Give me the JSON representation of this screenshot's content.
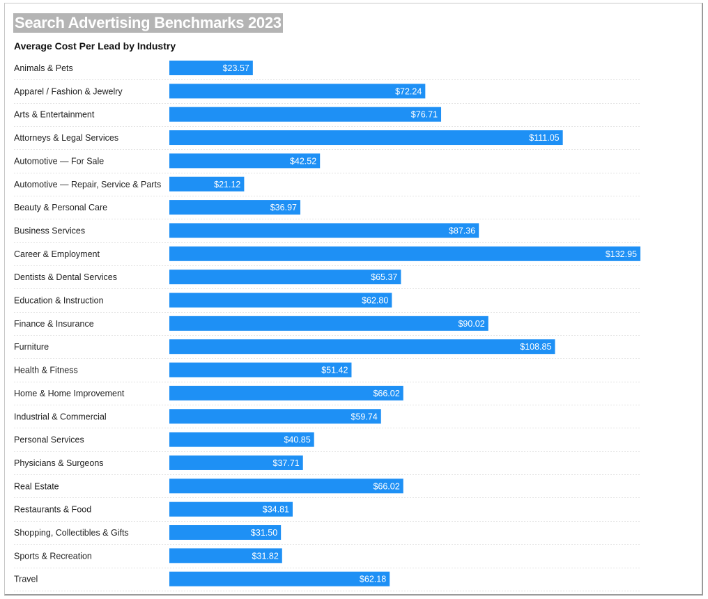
{
  "title": "Search Advertising Benchmarks 2023",
  "chart_data": {
    "type": "bar",
    "orientation": "horizontal",
    "title": "Average Cost Per Lead by Industry",
    "xlabel": "",
    "ylabel": "",
    "value_prefix": "$",
    "xlim": [
      0,
      132.95
    ],
    "bar_color": "#1E90F5",
    "categories": [
      "Animals & Pets",
      "Apparel / Fashion & Jewelry",
      "Arts & Entertainment",
      "Attorneys & Legal Services",
      "Automotive — For Sale",
      "Automotive — Repair, Service & Parts",
      "Beauty & Personal Care",
      "Business Services",
      "Career & Employment",
      "Dentists & Dental Services",
      "Education & Instruction",
      "Finance & Insurance",
      "Furniture",
      "Health & Fitness",
      "Home & Home Improvement",
      "Industrial & Commercial",
      "Personal Services",
      "Physicians & Surgeons",
      "Real Estate",
      "Restaurants & Food",
      "Shopping, Collectibles & Gifts",
      "Sports & Recreation",
      "Travel"
    ],
    "values": [
      23.57,
      72.24,
      76.71,
      111.05,
      42.52,
      21.12,
      36.97,
      87.36,
      132.95,
      65.37,
      62.8,
      90.02,
      108.85,
      51.42,
      66.02,
      59.74,
      40.85,
      37.71,
      66.02,
      34.81,
      31.5,
      31.82,
      62.18
    ],
    "value_labels": [
      "$23.57",
      "$72.24",
      "$76.71",
      "$111.05",
      "$42.52",
      "$21.12",
      "$36.97",
      "$87.36",
      "$132.95",
      "$65.37",
      "$62.80",
      "$90.02",
      "$108.85",
      "$51.42",
      "$66.02",
      "$59.74",
      "$40.85",
      "$37.71",
      "$66.02",
      "$34.81",
      "$31.50",
      "$31.82",
      "$62.18"
    ]
  }
}
